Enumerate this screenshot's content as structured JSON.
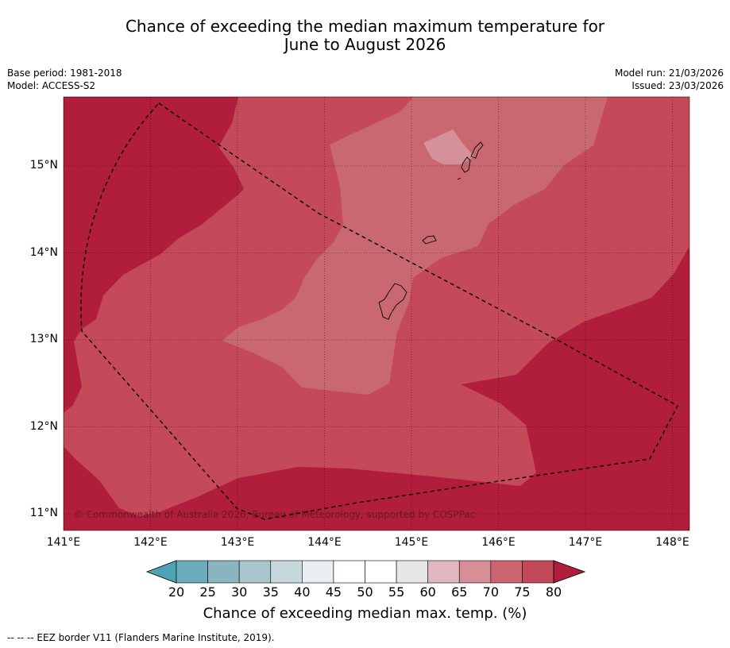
{
  "title": {
    "line1": "Chance of exceeding the median maximum temperature for",
    "line2": "June to August 2026"
  },
  "info_left": {
    "base_period": "Base period: 1981-2018",
    "model": "Model: ACCESS-S2"
  },
  "info_right": {
    "model_run": "Model run: 21/03/2026",
    "issued": "Issued: 23/03/2026"
  },
  "map": {
    "lon_labels": [
      "141°E",
      "142°E",
      "143°E",
      "144°E",
      "145°E",
      "146°E",
      "147°E",
      "148°E"
    ],
    "lat_labels": [
      "15°N",
      "14°N",
      "13°N",
      "12°N",
      "11°N"
    ],
    "copyright": "© Commonwealth of Australia 2026, Bureau of Meteorology, supported by COSPPac",
    "category_colors": {
      "p75_80": "#c44a59",
      "p70_75": "#ca6872",
      "p65_70": "#d4919a",
      "gt80": "#b11e3b"
    }
  },
  "colorbar": {
    "title": "Chance of exceeding median max. temp. (%)",
    "labels": [
      "20",
      "25",
      "30",
      "35",
      "40",
      "45",
      "50",
      "55",
      "60",
      "65",
      "70",
      "75",
      "80"
    ],
    "under_color": "#4fa1b4",
    "over_color": "#b11e3b",
    "colors": [
      "#6badbc",
      "#89b4c0",
      "#a8c6cb",
      "#c7d8dc",
      "#e9f0f1",
      "#ffffff",
      "#ffffff",
      "#e7e7e7",
      "#e1b6bc",
      "#d68e97",
      "#cb6571",
      "#c24a58"
    ]
  },
  "footnote": "--  --  -- EEZ border V11 (Flanders Marine Institute, 2019)."
}
